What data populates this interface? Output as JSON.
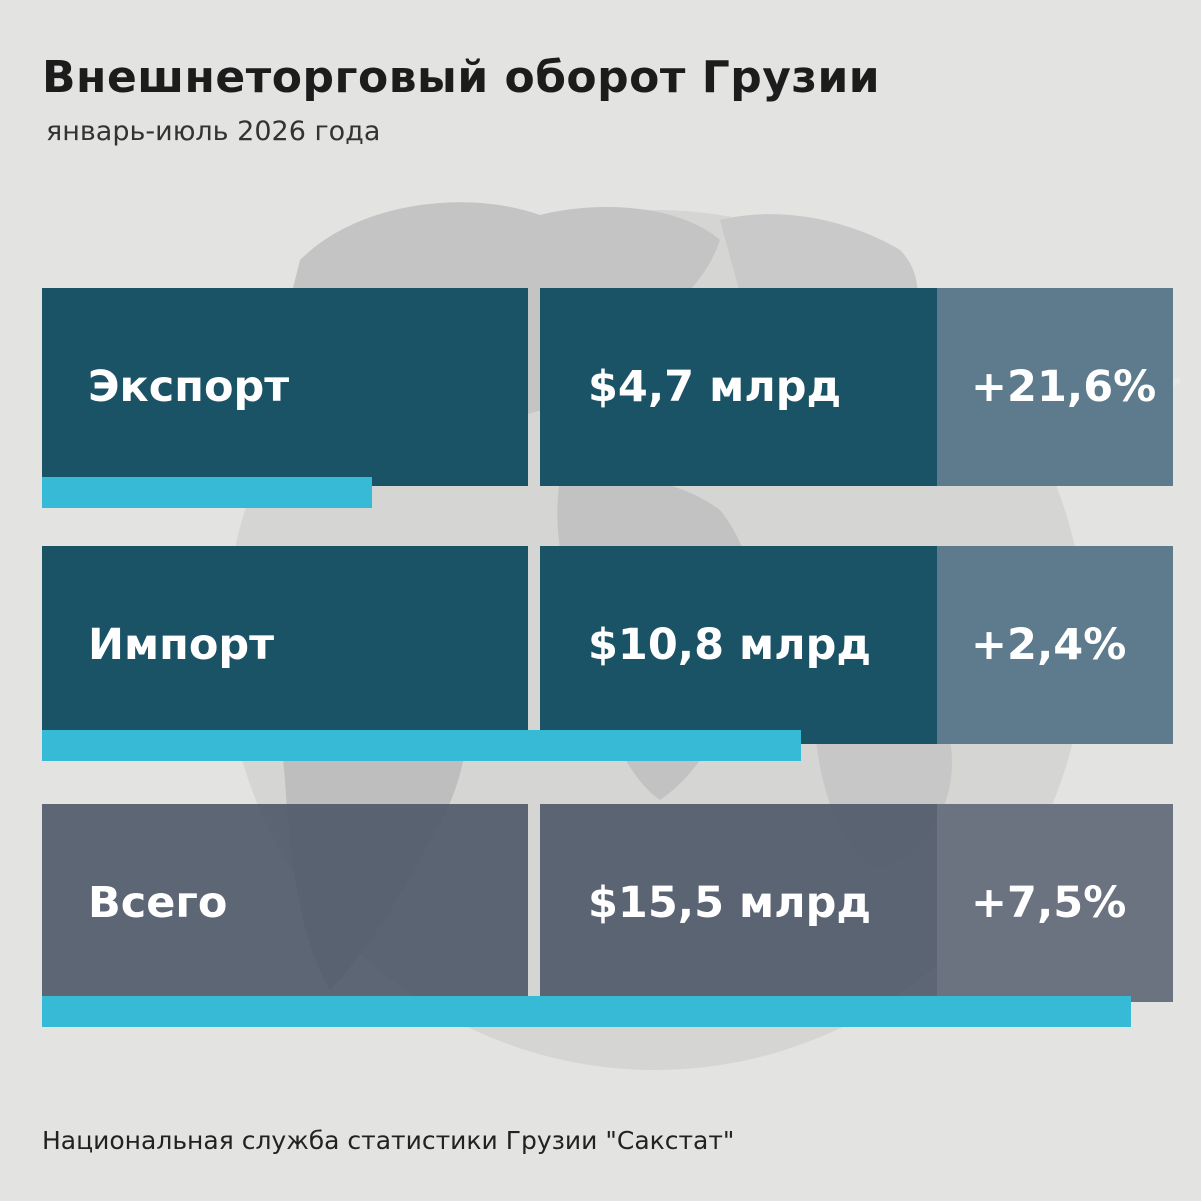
{
  "header": {
    "title": "Внешнеторговый оборот Грузии",
    "subtitle": "январь-июль 2026 года"
  },
  "rows": [
    {
      "label": "Экспорт",
      "value": "$4,7 млрд",
      "change": "+21,6%"
    },
    {
      "label": "Импорт",
      "value": "$10,8 млрд",
      "change": "+2,4%"
    },
    {
      "label": "Всего",
      "value": "$15,5 млрд",
      "change": "+7,5%"
    }
  ],
  "source": "Национальная служба статистики Грузии \"Сакстат\"",
  "colors": {
    "row_dark": "#1a5266",
    "change_cell": "#5e7b8d",
    "total_row": "#4e5868",
    "bar": "#37bad5",
    "background": "#e3e3e2"
  },
  "chart_data": {
    "type": "bar",
    "orientation": "horizontal",
    "title": "Внешнеторговый оборот Грузии",
    "subtitle": "январь-июль 2026 года",
    "categories": [
      "Экспорт",
      "Импорт",
      "Всего"
    ],
    "values": [
      4.7,
      10.8,
      15.5
    ],
    "value_labels": [
      "$4,7 млрд",
      "$10,8 млрд",
      "$15,5 млрд"
    ],
    "changes": [
      "+21,6%",
      "+2,4%",
      "+7,5%"
    ],
    "xlim": [
      0,
      16.1
    ],
    "grid": false,
    "legend": "none"
  }
}
